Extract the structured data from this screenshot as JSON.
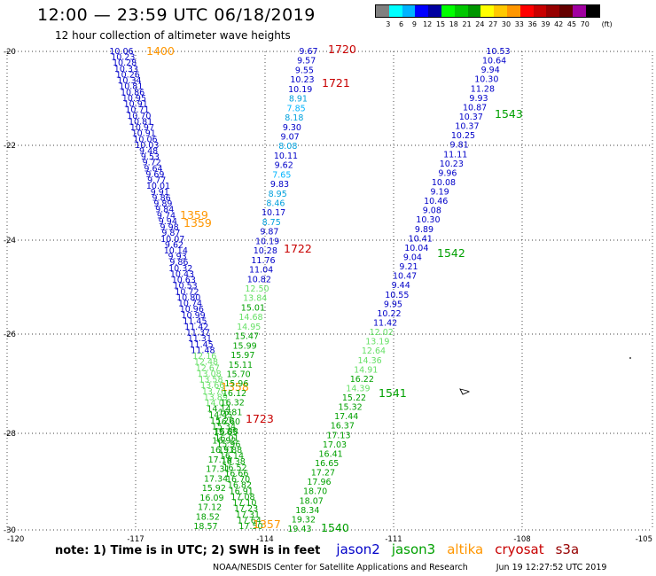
{
  "header": {
    "title": "12:00 — 23:59 UTC 06/18/2019",
    "subtitle": "12 hour collection of altimeter wave heights"
  },
  "color_scale": {
    "unit_label": "(ft)",
    "colors": [
      "#808080",
      "#00ffff",
      "#00b4ff",
      "#0000ff",
      "#0000a0",
      "#00ff00",
      "#00c800",
      "#009600",
      "#ffff00",
      "#ffc800",
      "#ff9600",
      "#ff0000",
      "#c80000",
      "#960000",
      "#640000",
      "#a000a0",
      "#000000"
    ],
    "tick_labels": [
      "3",
      "6",
      "9",
      "12",
      "15",
      "18",
      "21",
      "24",
      "27",
      "30",
      "33",
      "36",
      "39",
      "42",
      "45",
      "70"
    ]
  },
  "map": {
    "lat_labels": [
      "-20",
      "-22",
      "-24",
      "-26",
      "-28",
      "-30"
    ],
    "lon_labels": [
      "-120",
      "-117",
      "-114",
      "-111",
      "-108",
      "-105"
    ]
  },
  "satellite_colors": {
    "jason2": "#0000c8",
    "jason3": "#00a000",
    "altika": "#ff9600",
    "cryosat": "#c80000",
    "s3a": "#960000"
  },
  "tracks": [
    {
      "id": "track-1400-1359-1358-1357",
      "start_xy": [
        137,
        58
      ],
      "end_xy": [
        283,
        594
      ],
      "labels": [
        {
          "text": "1400",
          "sat": "altika",
          "at": [
            165,
            62
          ]
        },
        {
          "text": "1359",
          "sat": "altika",
          "at": [
            203,
            247
          ]
        },
        {
          "text": "1359",
          "sat": "altika",
          "at": [
            207,
            256
          ]
        },
        {
          "text": "1358",
          "sat": "altika",
          "at": [
            249,
            441
          ]
        },
        {
          "text": "1357",
          "sat": "altika",
          "at": [
            285,
            596
          ]
        }
      ],
      "values": [
        {
          "text": "10.06",
          "c": "#0000c8"
        },
        {
          "text": "10.23",
          "c": "#0000c8"
        },
        {
          "text": "10.28",
          "c": "#0000c8"
        },
        {
          "text": "10.33",
          "c": "#0000c8"
        },
        {
          "text": "10.26",
          "c": "#0000c8"
        },
        {
          "text": "10.34",
          "c": "#0000c8"
        },
        {
          "text": "10.81",
          "c": "#0000c8"
        },
        {
          "text": "10.86",
          "c": "#0000c8"
        },
        {
          "text": "10.95",
          "c": "#0000c8"
        },
        {
          "text": "10.91",
          "c": "#0000c8"
        },
        {
          "text": "10.71",
          "c": "#0000c8"
        },
        {
          "text": "10.70",
          "c": "#0000c8"
        },
        {
          "text": "10.81",
          "c": "#0000c8"
        },
        {
          "text": "10.97",
          "c": "#0000c8"
        },
        {
          "text": "10.91",
          "c": "#0000c8"
        },
        {
          "text": "10.06",
          "c": "#0000c8"
        },
        {
          "text": "10.03",
          "c": "#0000c8"
        },
        {
          "text": "9.48",
          "c": "#0000c8"
        },
        {
          "text": "9.53",
          "c": "#0000c8"
        },
        {
          "text": "9.72",
          "c": "#0000c8"
        },
        {
          "text": "9.64",
          "c": "#0000c8"
        },
        {
          "text": "9.69",
          "c": "#0000c8"
        },
        {
          "text": "9.77",
          "c": "#0000c8"
        },
        {
          "text": "10.01",
          "c": "#0000c8"
        },
        {
          "text": "9.91",
          "c": "#0000c8"
        },
        {
          "text": "9.86",
          "c": "#0000c8"
        },
        {
          "text": "9.89",
          "c": "#0000c8"
        },
        {
          "text": "9.84",
          "c": "#0000c8"
        },
        {
          "text": "9.74",
          "c": "#0000c8"
        },
        {
          "text": "9.94",
          "c": "#0000c8"
        },
        {
          "text": "9.98",
          "c": "#0000c8"
        },
        {
          "text": "9.87",
          "c": "#0000c8"
        },
        {
          "text": "10.07",
          "c": "#0000c8"
        },
        {
          "text": "9.62",
          "c": "#0000c8"
        },
        {
          "text": "10.14",
          "c": "#0000c8"
        },
        {
          "text": "9.93",
          "c": "#0000c8"
        },
        {
          "text": "9.86",
          "c": "#0000c8"
        },
        {
          "text": "10.32",
          "c": "#0000c8"
        },
        {
          "text": "10.43",
          "c": "#0000c8"
        },
        {
          "text": "10.63",
          "c": "#0000c8"
        },
        {
          "text": "10.53",
          "c": "#0000c8"
        },
        {
          "text": "10.72",
          "c": "#0000c8"
        },
        {
          "text": "10.80",
          "c": "#0000c8"
        },
        {
          "text": "10.74",
          "c": "#0000c8"
        },
        {
          "text": "10.96",
          "c": "#0000c8"
        },
        {
          "text": "10.99",
          "c": "#0000c8"
        },
        {
          "text": "11.45",
          "c": "#0000c8"
        },
        {
          "text": "11.42",
          "c": "#0000c8"
        },
        {
          "text": "11.37",
          "c": "#0000c8"
        },
        {
          "text": "11.31",
          "c": "#0000c8"
        },
        {
          "text": "11.45",
          "c": "#0000c8"
        },
        {
          "text": "11.48",
          "c": "#0000c8"
        },
        {
          "text": "12.16",
          "c": "#66e066"
        },
        {
          "text": "12.48",
          "c": "#66e066"
        },
        {
          "text": "12.67",
          "c": "#66e066"
        },
        {
          "text": "13.08",
          "c": "#66e066"
        },
        {
          "text": "13.58",
          "c": "#66e066"
        },
        {
          "text": "13.66",
          "c": "#66e066"
        },
        {
          "text": "13.76",
          "c": "#66e066"
        },
        {
          "text": "13.89",
          "c": "#66e066"
        },
        {
          "text": "14.01",
          "c": "#66e066"
        },
        {
          "text": "14.14",
          "c": "#00a000"
        },
        {
          "text": "14.45",
          "c": "#00a000"
        },
        {
          "text": "15.20",
          "c": "#00a000"
        },
        {
          "text": "15.34",
          "c": "#00a000"
        },
        {
          "text": "15.65",
          "c": "#00a000"
        },
        {
          "text": "16.01",
          "c": "#00a000"
        },
        {
          "text": "15.96",
          "c": "#00a000"
        },
        {
          "text": "15.88",
          "c": "#00a000"
        },
        {
          "text": "16.14",
          "c": "#00a000"
        },
        {
          "text": "16.38",
          "c": "#00a000"
        },
        {
          "text": "16.52",
          "c": "#00a000"
        },
        {
          "text": "16.66",
          "c": "#00a000"
        },
        {
          "text": "16.70",
          "c": "#00a000"
        },
        {
          "text": "16.82",
          "c": "#00a000"
        },
        {
          "text": "16.91",
          "c": "#00a000"
        },
        {
          "text": "17.08",
          "c": "#00a000"
        },
        {
          "text": "17.10",
          "c": "#00a000"
        },
        {
          "text": "17.23",
          "c": "#00a000"
        },
        {
          "text": "17.31",
          "c": "#00a000"
        },
        {
          "text": "17.64",
          "c": "#00a000"
        },
        {
          "text": "17.50",
          "c": "#00a000"
        }
      ]
    },
    {
      "id": "track-1720-1721-1722-1723",
      "start_xy": [
        348,
        58
      ],
      "end_xy": [
        232,
        594
      ],
      "labels": [
        {
          "text": "1720",
          "sat": "cryosat",
          "at": [
            370,
            60
          ]
        },
        {
          "text": "1721",
          "sat": "cryosat",
          "at": [
            363,
            98
          ]
        },
        {
          "text": "1722",
          "sat": "cryosat",
          "at": [
            320,
            285
          ]
        },
        {
          "text": "1723",
          "sat": "cryosat",
          "at": [
            277,
            477
          ]
        }
      ],
      "values": [
        {
          "text": "9.67",
          "c": "#0000c8"
        },
        {
          "text": "9.57",
          "c": "#0000c8"
        },
        {
          "text": "9.55",
          "c": "#0000c8"
        },
        {
          "text": "10.23",
          "c": "#0000c8"
        },
        {
          "text": "10.19",
          "c": "#0000c8"
        },
        {
          "text": "8.91",
          "c": "#00a0dc"
        },
        {
          "text": "7.85",
          "c": "#00b4ff"
        },
        {
          "text": "8.18",
          "c": "#00a0dc"
        },
        {
          "text": "9.30",
          "c": "#0000c8"
        },
        {
          "text": "9.07",
          "c": "#0000c8"
        },
        {
          "text": "8.08",
          "c": "#00a0dc"
        },
        {
          "text": "10.11",
          "c": "#0000c8"
        },
        {
          "text": "9.62",
          "c": "#0000c8"
        },
        {
          "text": "7.65",
          "c": "#00b4ff"
        },
        {
          "text": "9.83",
          "c": "#0000c8"
        },
        {
          "text": "8.95",
          "c": "#00a0dc"
        },
        {
          "text": "8.46",
          "c": "#00a0dc"
        },
        {
          "text": "10.17",
          "c": "#0000c8"
        },
        {
          "text": "8.75",
          "c": "#00a0dc"
        },
        {
          "text": "9.87",
          "c": "#0000c8"
        },
        {
          "text": "10.19",
          "c": "#0000c8"
        },
        {
          "text": "10.28",
          "c": "#0000c8"
        },
        {
          "text": "11.76",
          "c": "#0000c8"
        },
        {
          "text": "11.04",
          "c": "#0000c8"
        },
        {
          "text": "10.82",
          "c": "#0000c8"
        },
        {
          "text": "12.50",
          "c": "#66e066"
        },
        {
          "text": "13.84",
          "c": "#66e066"
        },
        {
          "text": "15.01",
          "c": "#00a000"
        },
        {
          "text": "14.68",
          "c": "#66e066"
        },
        {
          "text": "14.95",
          "c": "#66e066"
        },
        {
          "text": "15.47",
          "c": "#00a000"
        },
        {
          "text": "15.99",
          "c": "#00a000"
        },
        {
          "text": "15.97",
          "c": "#00a000"
        },
        {
          "text": "15.11",
          "c": "#00a000"
        },
        {
          "text": "15.70",
          "c": "#00a000"
        },
        {
          "text": "15.96",
          "c": "#00a000"
        },
        {
          "text": "16.12",
          "c": "#00a000"
        },
        {
          "text": "16.32",
          "c": "#00a000"
        },
        {
          "text": "16.81",
          "c": "#00a000"
        },
        {
          "text": "16.60",
          "c": "#00a000"
        },
        {
          "text": "16.88",
          "c": "#00a000"
        },
        {
          "text": "16.92",
          "c": "#00a000"
        },
        {
          "text": "16.91",
          "c": "#00a000"
        },
        {
          "text": "17.19",
          "c": "#00a000"
        },
        {
          "text": "17.31",
          "c": "#00a000"
        },
        {
          "text": "17.34",
          "c": "#00a000"
        },
        {
          "text": "15.92",
          "c": "#00a000"
        },
        {
          "text": "16.09",
          "c": "#00a000"
        },
        {
          "text": "17.12",
          "c": "#00a000"
        },
        {
          "text": "18.52",
          "c": "#00a000"
        },
        {
          "text": "18.57",
          "c": "#00a000"
        }
      ]
    },
    {
      "id": "track-1543-1542-1541-1540",
      "start_xy": [
        562,
        58
      ],
      "end_xy": [
        338,
        597
      ],
      "labels": [
        {
          "text": "1543",
          "sat": "jason3",
          "at": [
            558,
            133
          ]
        },
        {
          "text": "1542",
          "sat": "jason3",
          "at": [
            493,
            290
          ]
        },
        {
          "text": "1541",
          "sat": "jason3",
          "at": [
            427,
            448
          ]
        },
        {
          "text": "1540",
          "sat": "jason3",
          "at": [
            362,
            600
          ]
        }
      ],
      "values": [
        {
          "text": "10.53",
          "c": "#0000c8"
        },
        {
          "text": "10.64",
          "c": "#0000c8"
        },
        {
          "text": "9.94",
          "c": "#0000c8"
        },
        {
          "text": "10.30",
          "c": "#0000c8"
        },
        {
          "text": "11.28",
          "c": "#0000c8"
        },
        {
          "text": "9.93",
          "c": "#0000c8"
        },
        {
          "text": "10.87",
          "c": "#0000c8"
        },
        {
          "text": "10.37",
          "c": "#0000c8"
        },
        {
          "text": "10.37",
          "c": "#0000c8"
        },
        {
          "text": "10.25",
          "c": "#0000c8"
        },
        {
          "text": "9.81",
          "c": "#0000c8"
        },
        {
          "text": "11.11",
          "c": "#0000c8"
        },
        {
          "text": "10.23",
          "c": "#0000c8"
        },
        {
          "text": "9.96",
          "c": "#0000c8"
        },
        {
          "text": "10.08",
          "c": "#0000c8"
        },
        {
          "text": "9.19",
          "c": "#0000c8"
        },
        {
          "text": "10.46",
          "c": "#0000c8"
        },
        {
          "text": "9.08",
          "c": "#0000c8"
        },
        {
          "text": "10.30",
          "c": "#0000c8"
        },
        {
          "text": "9.89",
          "c": "#0000c8"
        },
        {
          "text": "10.41",
          "c": "#0000c8"
        },
        {
          "text": "10.04",
          "c": "#0000c8"
        },
        {
          "text": "9.04",
          "c": "#0000c8"
        },
        {
          "text": "9.21",
          "c": "#0000c8"
        },
        {
          "text": "10.47",
          "c": "#0000c8"
        },
        {
          "text": "9.44",
          "c": "#0000c8"
        },
        {
          "text": "10.55",
          "c": "#0000c8"
        },
        {
          "text": "9.95",
          "c": "#0000c8"
        },
        {
          "text": "10.22",
          "c": "#0000c8"
        },
        {
          "text": "11.42",
          "c": "#0000c8"
        },
        {
          "text": "12.02",
          "c": "#66e066"
        },
        {
          "text": "13.19",
          "c": "#66e066"
        },
        {
          "text": "12.64",
          "c": "#66e066"
        },
        {
          "text": "14.36",
          "c": "#66e066"
        },
        {
          "text": "14.91",
          "c": "#66e066"
        },
        {
          "text": "16.22",
          "c": "#00a000"
        },
        {
          "text": "14.39",
          "c": "#66e066"
        },
        {
          "text": "15.22",
          "c": "#00a000"
        },
        {
          "text": "15.32",
          "c": "#00a000"
        },
        {
          "text": "17.44",
          "c": "#00a000"
        },
        {
          "text": "16.37",
          "c": "#00a000"
        },
        {
          "text": "17.13",
          "c": "#00a000"
        },
        {
          "text": "17.03",
          "c": "#00a000"
        },
        {
          "text": "16.41",
          "c": "#00a000"
        },
        {
          "text": "16.65",
          "c": "#00a000"
        },
        {
          "text": "17.27",
          "c": "#00a000"
        },
        {
          "text": "17.96",
          "c": "#00a000"
        },
        {
          "text": "18.70",
          "c": "#00a000"
        },
        {
          "text": "18.07",
          "c": "#00a000"
        },
        {
          "text": "18.34",
          "c": "#00a000"
        },
        {
          "text": "19.32",
          "c": "#00a000"
        },
        {
          "text": "19.43",
          "c": "#00a000"
        }
      ]
    }
  ],
  "legend": {
    "note": "note: 1) Time is in UTC; 2) SWH is in feet",
    "satellites": [
      {
        "key": "jason2",
        "label": "jason2",
        "color": "#0000c8"
      },
      {
        "key": "jason3",
        "label": "jason3",
        "color": "#00a000"
      },
      {
        "key": "altika",
        "label": "altika",
        "color": "#ff9600"
      },
      {
        "key": "cryosat",
        "label": "cryosat",
        "color": "#c80000"
      },
      {
        "key": "s3a",
        "label": "s3a",
        "color": "#960000"
      }
    ]
  },
  "footer": {
    "credit": "NOAA/NESDIS Center for Satellite Applications and Research",
    "timestamp": "Jun 19 12:27:52 UTC 2019"
  }
}
